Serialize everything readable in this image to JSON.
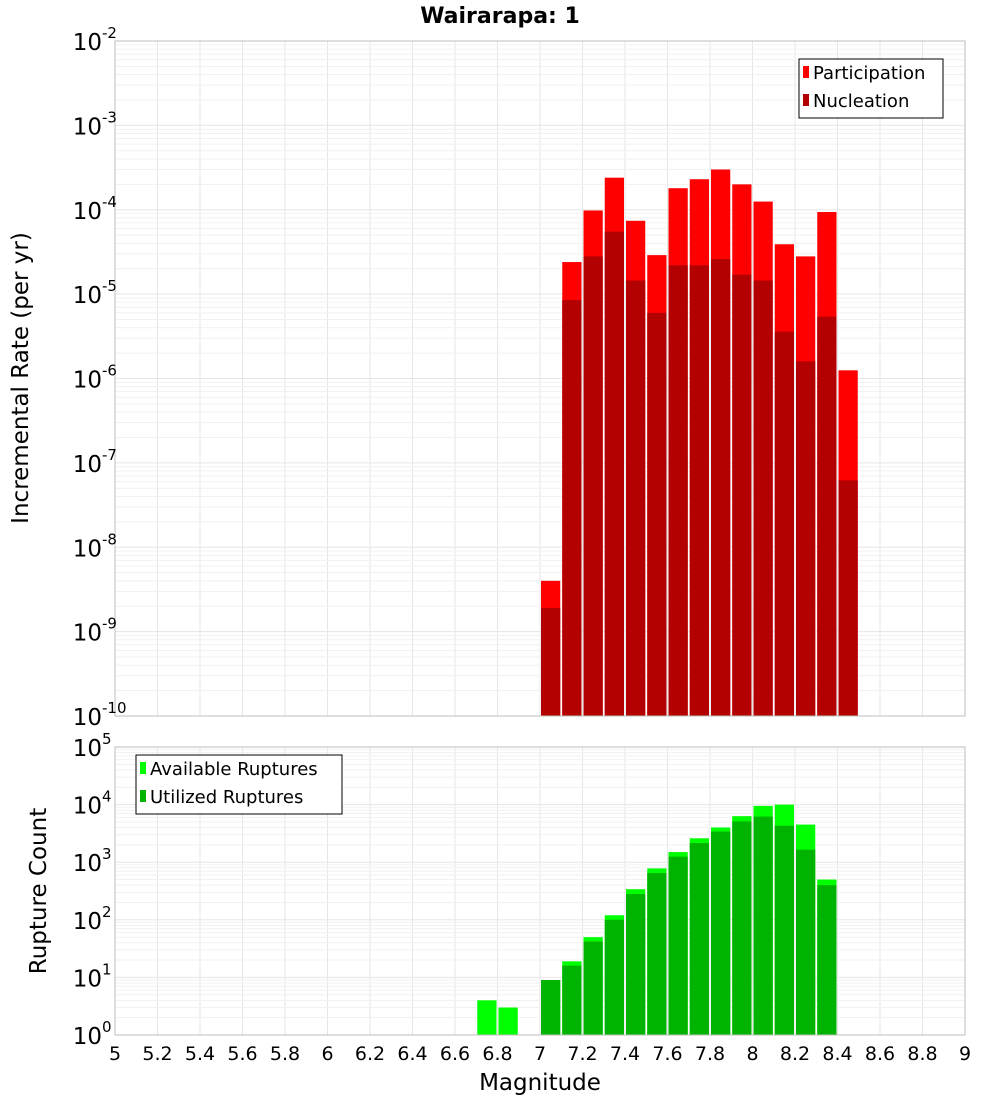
{
  "chart_data": [
    {
      "type": "bar",
      "title": "Wairarapa: 1",
      "ylabel": "Incremental Rate (per yr)",
      "xlabel": "",
      "yscale": "log",
      "ylim_exp": [
        -10,
        -2
      ],
      "xlim": [
        5,
        9
      ],
      "legend_position": "top-right",
      "bin_width": 0.1,
      "x": [
        7.05,
        7.15,
        7.25,
        7.35,
        7.45,
        7.55,
        7.65,
        7.75,
        7.85,
        7.95,
        8.05,
        8.15,
        8.25,
        8.35,
        8.45
      ],
      "series": [
        {
          "name": "Participation",
          "color": "#ff0000",
          "values": [
            4e-09,
            2.4e-05,
            9.8e-05,
            0.00024,
            7.4e-05,
            2.9e-05,
            0.00018,
            0.00023,
            0.0003,
            0.0002,
            0.000125,
            3.9e-05,
            2.8e-05,
            9.4e-05,
            1.25e-06
          ]
        },
        {
          "name": "Nucleation",
          "color": "#b30000",
          "values": [
            1.9e-09,
            8.5e-06,
            2.8e-05,
            5.5e-05,
            1.45e-05,
            6e-06,
            2.2e-05,
            2.2e-05,
            2.6e-05,
            1.7e-05,
            1.45e-05,
            3.6e-06,
            1.6e-06,
            5.4e-06,
            6.2e-08
          ]
        }
      ]
    },
    {
      "type": "bar",
      "title": "",
      "ylabel": "Rupture Count",
      "xlabel": "Magnitude",
      "yscale": "log",
      "ylim_exp": [
        0,
        5
      ],
      "xlim": [
        5,
        9
      ],
      "xticks": [
        "5",
        "5.2",
        "5.4",
        "5.6",
        "5.8",
        "6",
        "6.2",
        "6.4",
        "6.6",
        "6.8",
        "7",
        "7.2",
        "7.4",
        "7.6",
        "7.8",
        "8",
        "8.2",
        "8.4",
        "8.6",
        "8.8",
        "9"
      ],
      "legend_position": "top-left",
      "bin_width": 0.1,
      "x": [
        6.75,
        6.85,
        7.05,
        7.15,
        7.25,
        7.35,
        7.45,
        7.55,
        7.65,
        7.75,
        7.85,
        7.95,
        8.05,
        8.15,
        8.25,
        8.35,
        8.45
      ],
      "series": [
        {
          "name": "Available Ruptures",
          "color": "#00ff00",
          "values": [
            4,
            3,
            9,
            19,
            50,
            120,
            340,
            780,
            1500,
            2600,
            4000,
            6300,
            9500,
            10000,
            4500,
            500,
            1
          ]
        },
        {
          "name": "Utilized Ruptures",
          "color": "#00b300",
          "values": [
            0,
            0,
            9,
            16,
            42,
            100,
            280,
            650,
            1250,
            2150,
            3400,
            5100,
            6200,
            4300,
            1650,
            400,
            0
          ]
        }
      ]
    }
  ]
}
